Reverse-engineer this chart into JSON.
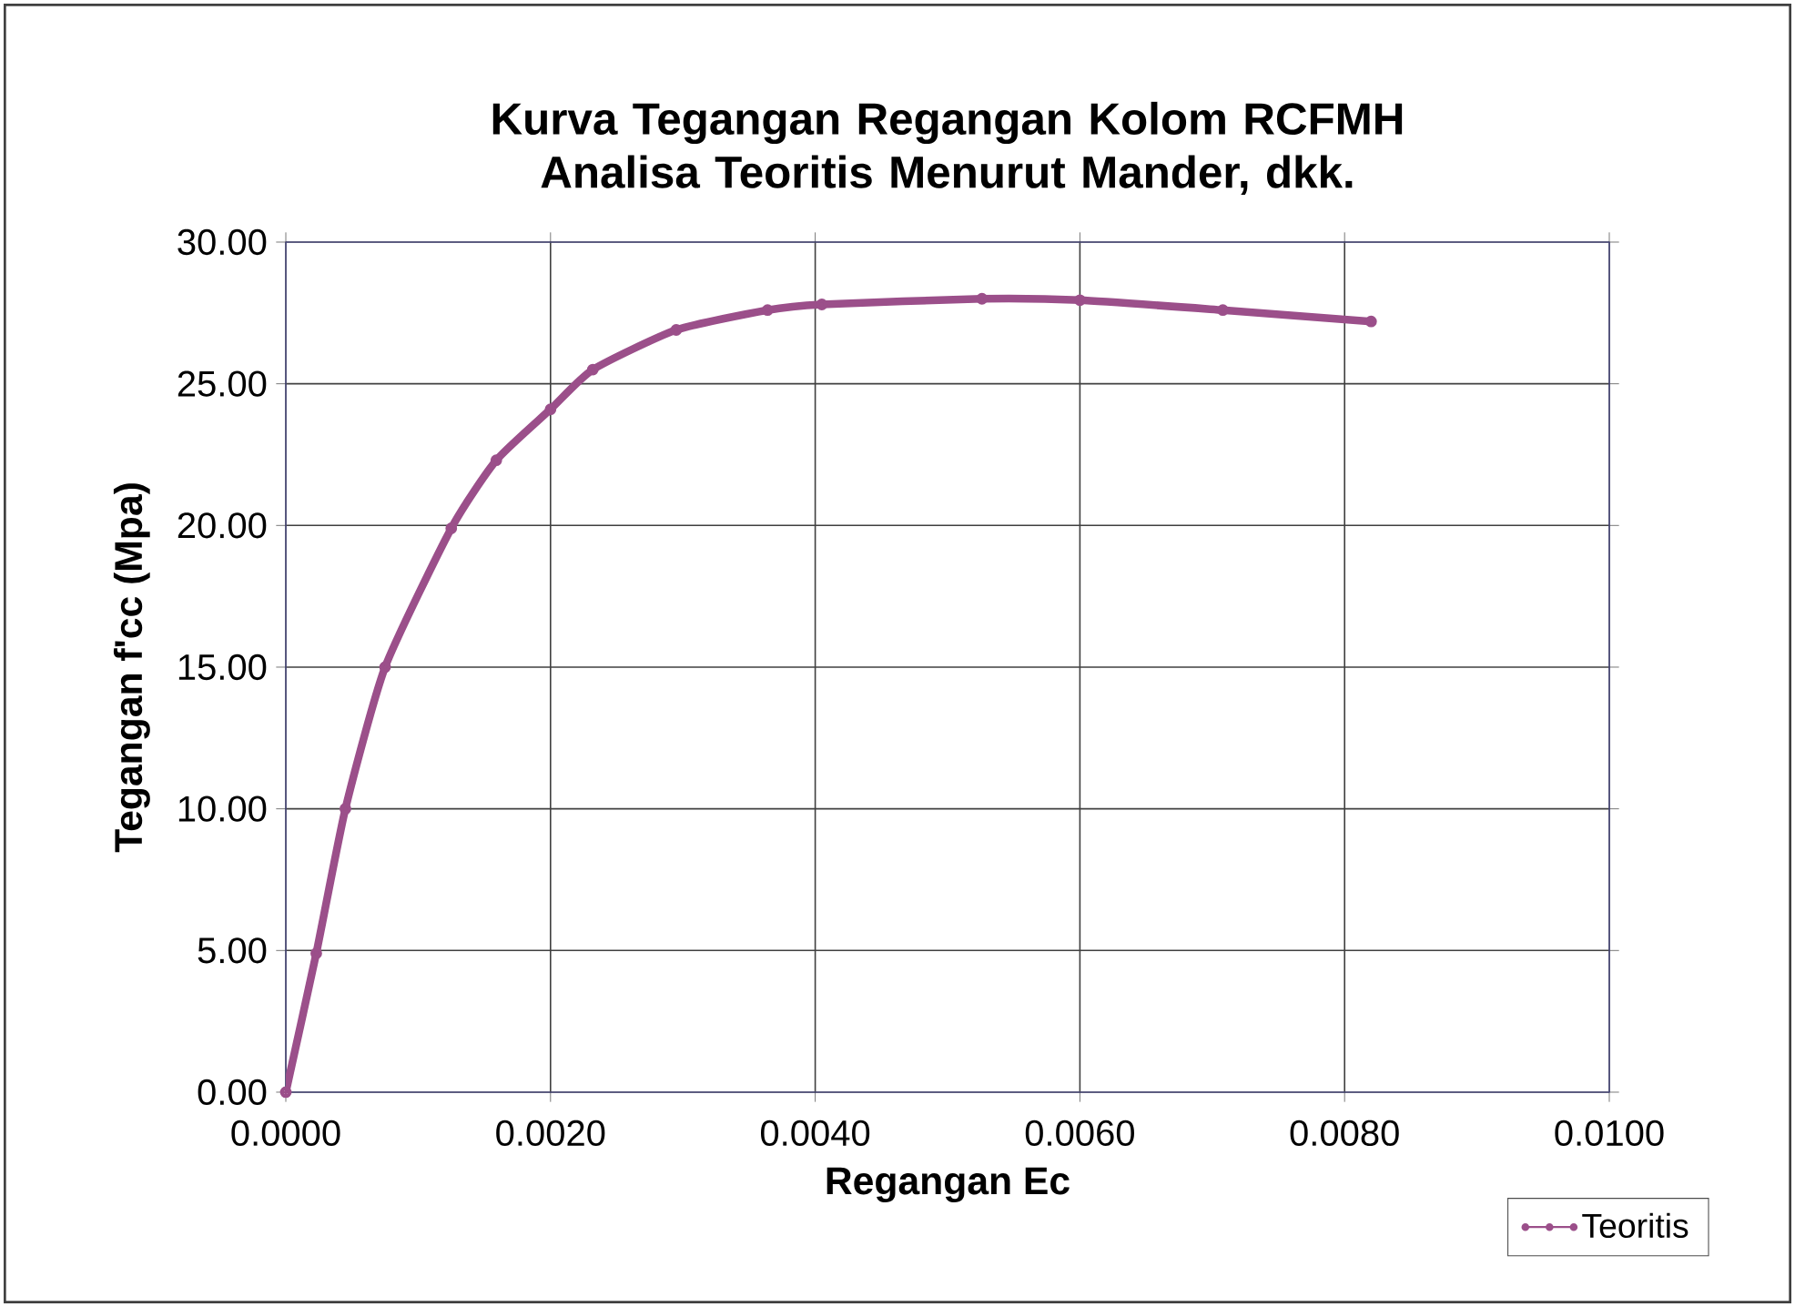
{
  "chart_data": {
    "type": "line",
    "title": "Kurva Tegangan Regangan Kolom RCFMH Analisa Teoritis Menurut Mander, dkk.",
    "xlabel": "Regangan Ec",
    "ylabel": "Tegangan f'cc (Mpa)",
    "x": [
      0,
      0.00023,
      0.00045,
      0.00075,
      0.00125,
      0.00159,
      0.002,
      0.00232,
      0.00295,
      0.00364,
      0.00405,
      0.00526,
      0.006,
      0.00708,
      0.0082
    ],
    "series": [
      {
        "name": "Teoritis",
        "color": "#9b4f8a",
        "values": [
          0,
          4.9,
          10.0,
          15.0,
          19.9,
          22.3,
          24.1,
          25.5,
          26.9,
          27.6,
          27.8,
          28.0,
          27.95,
          27.6,
          27.2
        ]
      }
    ],
    "xlim": [
      0,
      0.01
    ],
    "ylim": [
      0,
      30
    ],
    "xticks": [
      {
        "value": 0,
        "label": "0.0000"
      },
      {
        "value": 0.002,
        "label": "0.0020"
      },
      {
        "value": 0.004,
        "label": "0.0040"
      },
      {
        "value": 0.006,
        "label": "0.0060"
      },
      {
        "value": 0.008,
        "label": "0.0080"
      },
      {
        "value": 0.01,
        "label": "0.0100"
      }
    ],
    "yticks": [
      {
        "value": 0,
        "label": "0.00"
      },
      {
        "value": 5,
        "label": "5.00"
      },
      {
        "value": 10,
        "label": "10.00"
      },
      {
        "value": 15,
        "label": "15.00"
      },
      {
        "value": 20,
        "label": "20.00"
      },
      {
        "value": 25,
        "label": "25.00"
      },
      {
        "value": 30,
        "label": "30.00"
      }
    ],
    "grid": true,
    "legend": "bottom right",
    "marker": "circle",
    "line_style": "solid"
  }
}
